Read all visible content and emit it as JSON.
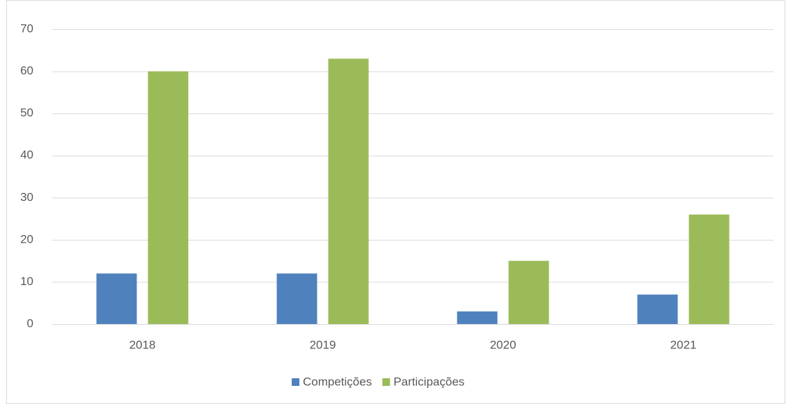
{
  "chart_data": {
    "type": "bar",
    "categories": [
      "2018",
      "2019",
      "2020",
      "2021"
    ],
    "series": [
      {
        "name": "Competições",
        "color": "#4f81bd",
        "values": [
          12,
          12,
          3,
          7
        ]
      },
      {
        "name": "Participações",
        "color": "#9bbb59",
        "values": [
          60,
          63,
          15,
          26
        ]
      }
    ],
    "ylim": [
      0,
      70
    ],
    "yticks": [
      0,
      10,
      20,
      30,
      40,
      50,
      60,
      70
    ],
    "grid": true,
    "legend": "bottom"
  }
}
